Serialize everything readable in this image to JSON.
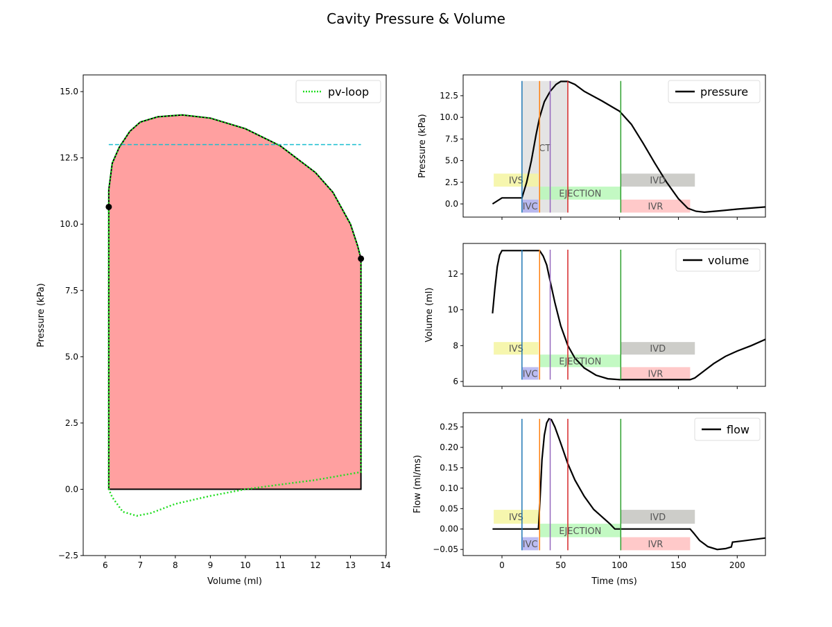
{
  "figure_title": "Cavity Pressure & Volume",
  "chart_data": [
    {
      "id": "pv",
      "type": "line",
      "xlabel": "Volume (ml)",
      "ylabel": "Pressure (kPa)",
      "xlim": [
        5.37,
        14.02
      ],
      "ylim": [
        -2.5,
        15.63
      ],
      "xticks": [
        6,
        7,
        8,
        9,
        10,
        11,
        12,
        13,
        14
      ],
      "xtick_labels": [
        "6",
        "7",
        "8",
        "9",
        "10",
        "11",
        "12",
        "13",
        "14"
      ],
      "yticks": [
        -2.5,
        0,
        2.5,
        5,
        7.5,
        10,
        12.5,
        15
      ],
      "ytick_labels": [
        "−2.5",
        "0.0",
        "2.5",
        "5.0",
        "7.5",
        "10.0",
        "12.5",
        "15.0"
      ],
      "legend": {
        "label": "pv-loop",
        "placement": "top-right"
      },
      "fill_color": "#ffa0a0",
      "loop_color": "#22dd22",
      "work_region": {
        "upper": [
          [
            6.1,
            10.65
          ],
          [
            6.1,
            11.3
          ],
          [
            6.2,
            12.3
          ],
          [
            6.4,
            12.9
          ],
          [
            6.7,
            13.5
          ],
          [
            7,
            13.85
          ],
          [
            7.5,
            14.05
          ],
          [
            8.2,
            14.12
          ],
          [
            9,
            14.0
          ],
          [
            10,
            13.6
          ],
          [
            11,
            12.95
          ],
          [
            12,
            11.95
          ],
          [
            12.5,
            11.2
          ],
          [
            13,
            10
          ],
          [
            13.2,
            9.2
          ],
          [
            13.3,
            8.7
          ]
        ],
        "baseline": 0
      },
      "pv_loop_lower": [
        [
          13.3,
          0.65
        ],
        [
          12,
          0.35
        ],
        [
          11,
          0.18
        ],
        [
          10,
          0
        ],
        [
          9,
          -0.25
        ],
        [
          8,
          -0.55
        ],
        [
          7.3,
          -0.9
        ],
        [
          6.9,
          -1.0
        ],
        [
          6.5,
          -0.85
        ],
        [
          6.2,
          -0.3
        ],
        [
          6.1,
          0
        ]
      ],
      "reference_line": {
        "y": 13.0,
        "x": [
          6.1,
          13.3
        ],
        "color": "#17becf"
      },
      "markers": [
        [
          6.1,
          10.65
        ],
        [
          13.3,
          8.7
        ]
      ]
    },
    {
      "id": "pressure",
      "type": "line",
      "ylabel": "Pressure (kPa)",
      "ylim": [
        -1.52,
        14.9
      ],
      "yticks": [
        0,
        2.5,
        5,
        7.5,
        10,
        12.5
      ],
      "ytick_labels": [
        "0.0",
        "2.5",
        "5.0",
        "7.5",
        "10.0",
        "12.5"
      ],
      "legend": {
        "label": "pressure",
        "placement": "top-right"
      },
      "series": [
        [
          -8,
          0
        ],
        [
          0,
          0.7
        ],
        [
          17,
          0.7
        ],
        [
          21,
          2.5
        ],
        [
          25,
          5
        ],
        [
          29,
          8
        ],
        [
          32,
          10
        ],
        [
          36,
          11.8
        ],
        [
          41,
          13
        ],
        [
          46,
          13.8
        ],
        [
          50,
          14.15
        ],
        [
          56,
          14.15
        ],
        [
          62,
          13.8
        ],
        [
          70,
          13
        ],
        [
          85,
          11.9
        ],
        [
          100,
          10.7
        ],
        [
          110,
          9.2
        ],
        [
          120,
          7
        ],
        [
          130,
          4.7
        ],
        [
          140,
          2.5
        ],
        [
          150,
          0.6
        ],
        [
          158,
          -0.5
        ],
        [
          165,
          -0.85
        ],
        [
          172,
          -0.95
        ],
        [
          185,
          -0.8
        ],
        [
          200,
          -0.6
        ],
        [
          224,
          -0.35
        ]
      ],
      "lines_range": [
        -1.0,
        14.2
      ],
      "bands": {
        "top": [
          2.0,
          3.5
        ],
        "mid": [
          0.5,
          2.0
        ],
        "low": [
          -1.0,
          0.5
        ]
      },
      "ct": {
        "label": "CT",
        "label_y": 6.5
      }
    },
    {
      "id": "volume",
      "type": "line",
      "ylabel": "Volume (ml)",
      "ylim": [
        5.73,
        13.7
      ],
      "yticks": [
        6,
        8,
        10,
        12
      ],
      "ytick_labels": [
        "6",
        "8",
        "10",
        "12"
      ],
      "legend": {
        "label": "volume",
        "placement": "top-right"
      },
      "series": [
        [
          -8,
          9.8
        ],
        [
          -6,
          11.2
        ],
        [
          -4,
          12.4
        ],
        [
          -2,
          13.05
        ],
        [
          0,
          13.3
        ],
        [
          32,
          13.3
        ],
        [
          35,
          13.0
        ],
        [
          38,
          12.5
        ],
        [
          41,
          11.6
        ],
        [
          45,
          10.4
        ],
        [
          50,
          9.1
        ],
        [
          56,
          8.0
        ],
        [
          62,
          7.3
        ],
        [
          70,
          6.75
        ],
        [
          80,
          6.35
        ],
        [
          90,
          6.15
        ],
        [
          100,
          6.1
        ],
        [
          160,
          6.1
        ],
        [
          164,
          6.2
        ],
        [
          170,
          6.5
        ],
        [
          180,
          7.0
        ],
        [
          190,
          7.4
        ],
        [
          200,
          7.7
        ],
        [
          212,
          8.0
        ],
        [
          224,
          8.35
        ]
      ],
      "lines_range": [
        6.1,
        13.35
      ],
      "bands": {
        "top": [
          7.5,
          8.2
        ],
        "mid": [
          6.8,
          7.5
        ],
        "low": [
          6.1,
          6.8
        ]
      }
    },
    {
      "id": "flow",
      "type": "line",
      "ylabel": "Flow (ml/ms)",
      "xlabel": "Time (ms)",
      "ylim": [
        -0.065,
        0.285
      ],
      "yticks": [
        -0.05,
        0,
        0.05,
        0.1,
        0.15,
        0.2,
        0.25
      ],
      "ytick_labels": [
        "−0.05",
        "0.00",
        "0.05",
        "0.10",
        "0.15",
        "0.20",
        "0.25"
      ],
      "legend": {
        "label": "flow",
        "placement": "top-right"
      },
      "series": [
        [
          -8,
          0
        ],
        [
          31,
          0
        ],
        [
          32.5,
          0.08
        ],
        [
          34,
          0.17
        ],
        [
          36,
          0.23
        ],
        [
          38,
          0.26
        ],
        [
          40,
          0.27
        ],
        [
          42,
          0.268
        ],
        [
          45,
          0.25
        ],
        [
          50,
          0.21
        ],
        [
          56,
          0.16
        ],
        [
          62,
          0.12
        ],
        [
          70,
          0.08
        ],
        [
          78,
          0.048
        ],
        [
          85,
          0.03
        ],
        [
          92,
          0.012
        ],
        [
          96,
          0
        ],
        [
          160,
          0
        ],
        [
          163,
          -0.01
        ],
        [
          168,
          -0.028
        ],
        [
          175,
          -0.043
        ],
        [
          183,
          -0.05
        ],
        [
          190,
          -0.048
        ],
        [
          195,
          -0.044
        ],
        [
          196,
          -0.032
        ],
        [
          205,
          -0.029
        ],
        [
          224,
          -0.022
        ]
      ],
      "lines_range": [
        -0.052,
        0.27
      ],
      "bands": {
        "top": [
          0.013,
          0.047
        ],
        "mid": [
          -0.02,
          0.013
        ],
        "low": [
          -0.052,
          -0.02
        ]
      }
    }
  ],
  "time_axis": {
    "xlim": [
      -33,
      224
    ],
    "xticks": [
      0,
      50,
      100,
      150,
      200
    ],
    "xtick_labels": [
      "0",
      "50",
      "100",
      "150",
      "200"
    ]
  },
  "phase_lines": [
    {
      "t": 17,
      "color": "#1f77b4"
    },
    {
      "t": 32,
      "color": "#ff7f0e"
    },
    {
      "t": 41,
      "color": "#9467bd"
    },
    {
      "t": 56,
      "color": "#d62728"
    },
    {
      "t": 101,
      "color": "#2ca02c"
    }
  ],
  "ct_range": [
    17,
    56
  ],
  "phases": [
    {
      "label": "IVS",
      "start": -7,
      "end": 31,
      "row": "top",
      "color": "#f5f5a0"
    },
    {
      "label": "IVC",
      "start": 17,
      "end": 31,
      "row": "low",
      "color": "#b0b0f0"
    },
    {
      "label": "EJECTION",
      "start": 32,
      "end": 101,
      "row": "mid",
      "color": "#b8f8b8"
    },
    {
      "label": "IVD",
      "start": 101,
      "end": 164,
      "row": "top",
      "color": "#c4c4c0"
    },
    {
      "label": "IVR",
      "start": 101,
      "end": 160,
      "row": "low",
      "color": "#ffc0c0"
    }
  ]
}
